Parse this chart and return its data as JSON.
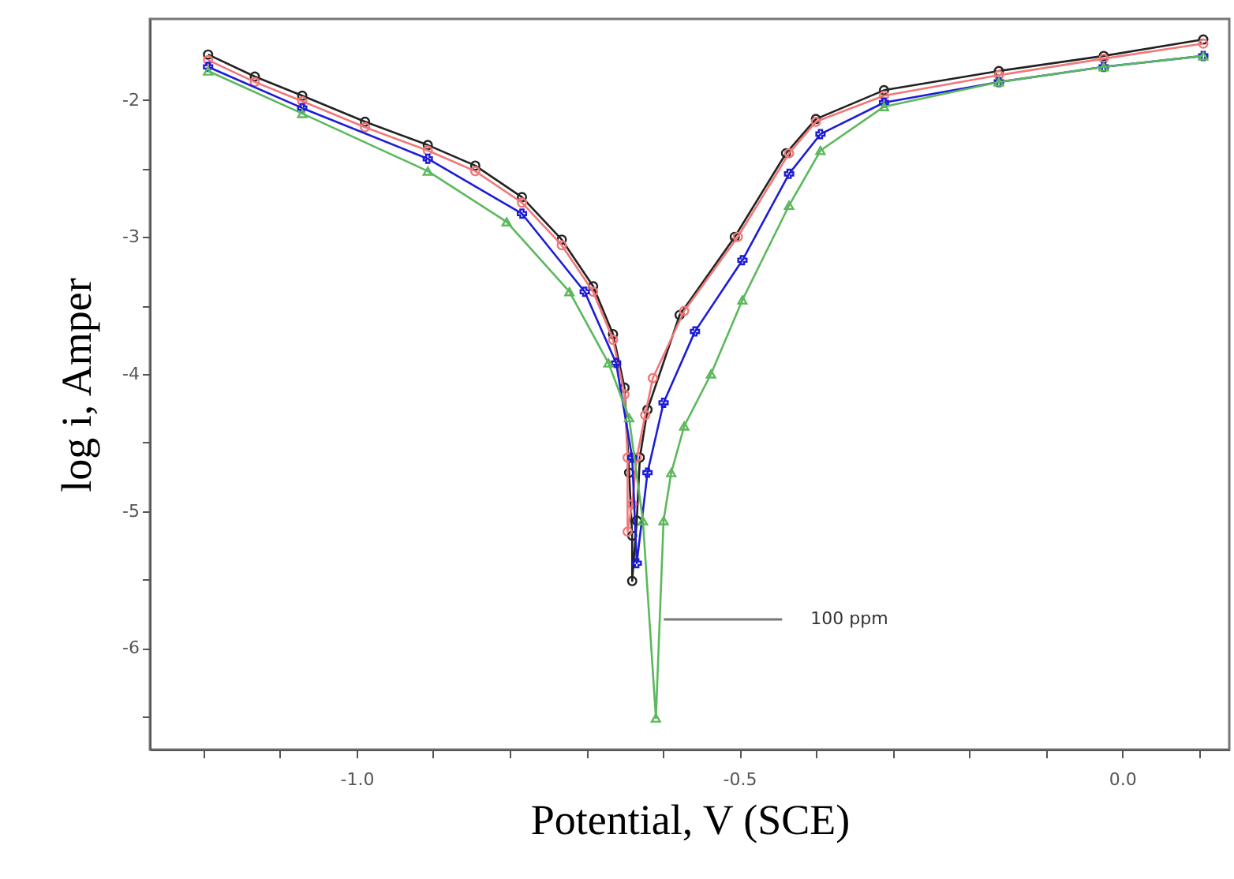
{
  "chart_data": {
    "type": "line",
    "xlabel": "Potential, V (SCE)",
    "ylabel": "log i, Amper",
    "xlim": [
      -1.27,
      0.14
    ],
    "ylim": [
      -6.74,
      -1.41
    ],
    "xticks": [
      {
        "value": -1.2,
        "label": null
      },
      {
        "value": -1.1,
        "label": null
      },
      {
        "value": -1.0,
        "label": "-1.0"
      },
      {
        "value": -0.9,
        "label": null
      },
      {
        "value": -0.8,
        "label": null
      },
      {
        "value": -0.7,
        "label": null
      },
      {
        "value": -0.6,
        "label": null
      },
      {
        "value": -0.5,
        "label": "-0.5"
      },
      {
        "value": -0.4,
        "label": null
      },
      {
        "value": -0.3,
        "label": null
      },
      {
        "value": -0.2,
        "label": null
      },
      {
        "value": -0.1,
        "label": null
      },
      {
        "value": 0.0,
        "label": "0.0"
      },
      {
        "value": 0.1,
        "label": null
      }
    ],
    "yticks": [
      -2,
      {
        "value": -2.5,
        "label": null
      },
      -3,
      {
        "value": -3.5,
        "label": null
      },
      -4,
      {
        "value": -4.5,
        "label": null
      },
      -5,
      {
        "value": -5.5,
        "label": null
      },
      -6,
      {
        "value": -6.5,
        "label": null
      }
    ],
    "grid": false,
    "series": [
      {
        "color": "#222222",
        "marker": "circle",
        "x": [
          -1.194,
          -1.133,
          -1.071,
          -0.989,
          -0.907,
          -0.845,
          -0.784,
          -0.732,
          -0.691,
          -0.665,
          -0.65,
          -0.644,
          -0.64,
          -0.64,
          -0.634,
          -0.63,
          -0.62,
          -0.578,
          -0.506,
          -0.439,
          -0.4,
          -0.311,
          -0.161,
          -0.024,
          0.106
        ],
        "values": [
          -1.67,
          -1.83,
          -1.97,
          -2.16,
          -2.33,
          -2.48,
          -2.71,
          -3.02,
          -3.36,
          -3.71,
          -4.1,
          -4.72,
          -5.18,
          -5.51,
          -5.07,
          -4.61,
          -4.26,
          -3.57,
          -3.0,
          -2.39,
          -2.14,
          -1.93,
          -1.79,
          -1.68,
          -1.56
        ]
      },
      {
        "color": "#f07878",
        "marker": "circle",
        "x": [
          -1.194,
          -1.133,
          -1.071,
          -0.989,
          -0.907,
          -0.845,
          -0.784,
          -0.732,
          -0.691,
          -0.665,
          -0.65,
          -0.646,
          -0.646,
          -0.64,
          -0.634,
          -0.623,
          -0.613,
          -0.572,
          -0.502,
          -0.435,
          -0.4,
          -0.311,
          -0.161,
          -0.024,
          0.106
        ],
        "values": [
          -1.71,
          -1.87,
          -2.01,
          -2.2,
          -2.37,
          -2.52,
          -2.75,
          -3.06,
          -3.4,
          -3.75,
          -4.15,
          -4.61,
          -5.15,
          -4.95,
          -4.61,
          -4.3,
          -4.03,
          -3.54,
          -3.0,
          -2.39,
          -2.16,
          -1.97,
          -1.82,
          -1.7,
          -1.59
        ]
      },
      {
        "color": "#1c1cd8",
        "marker": "cross",
        "x": [
          -1.194,
          -1.071,
          -0.907,
          -0.784,
          -0.702,
          -0.661,
          -0.64,
          -0.634,
          -0.62,
          -0.599,
          -0.558,
          -0.496,
          -0.435,
          -0.394,
          -0.311,
          -0.161,
          -0.024,
          0.106
        ],
        "values": [
          -1.76,
          -2.06,
          -2.43,
          -2.83,
          -3.4,
          -3.92,
          -4.61,
          -5.38,
          -4.72,
          -4.21,
          -3.69,
          -3.17,
          -2.54,
          -2.25,
          -2.02,
          -1.87,
          -1.76,
          -1.68
        ]
      },
      {
        "name": "100 ppm",
        "color": "#5cb85c",
        "marker": "triangle",
        "x": [
          -1.194,
          -1.071,
          -0.907,
          -0.804,
          -0.722,
          -0.671,
          -0.644,
          -0.626,
          -0.609,
          -0.599,
          -0.589,
          -0.572,
          -0.537,
          -0.496,
          -0.435,
          -0.394,
          -0.311,
          -0.161,
          -0.024,
          0.106
        ],
        "values": [
          -1.79,
          -2.1,
          -2.52,
          -2.89,
          -3.4,
          -3.92,
          -4.32,
          -5.07,
          -6.51,
          -5.07,
          -4.72,
          -4.38,
          -4.0,
          -3.46,
          -2.77,
          -2.37,
          -2.05,
          -1.87,
          -1.76,
          -1.68
        ]
      }
    ]
  }
}
